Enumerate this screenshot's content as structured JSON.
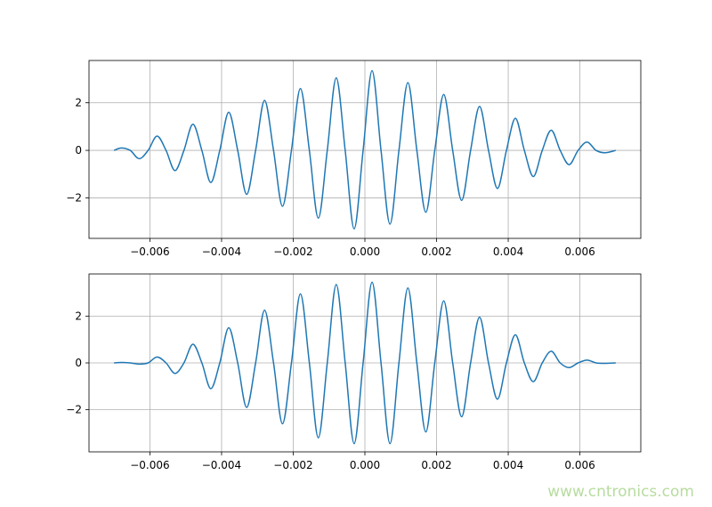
{
  "chart_data": [
    {
      "type": "line",
      "x": [
        -0.007,
        -0.0068,
        -0.00655,
        -0.0063,
        -0.00605,
        -0.0058,
        -0.00555,
        -0.0053,
        -0.00505,
        -0.0048,
        -0.00455,
        -0.0043,
        -0.00405,
        -0.0038,
        -0.00355,
        -0.0033,
        -0.00305,
        -0.0028,
        -0.00255,
        -0.0023,
        -0.00205,
        -0.0018,
        -0.00155,
        -0.0013,
        -0.00105,
        -0.0008,
        -0.00055,
        -0.0003,
        -5e-05,
        0.0002,
        0.00045,
        0.0007,
        0.00095,
        0.0012,
        0.00145,
        0.0017,
        0.00195,
        0.0022,
        0.00245,
        0.0027,
        0.00295,
        0.0032,
        0.00345,
        0.0037,
        0.00395,
        0.0042,
        0.00445,
        0.0047,
        0.00495,
        0.0052,
        0.00545,
        0.0057,
        0.00595,
        0.0062,
        0.00645,
        0.0067,
        0.007
      ],
      "series": [
        {
          "color": "#1f77b4",
          "values": [
            0,
            0.1,
            0,
            -0.35,
            0,
            0.6,
            0,
            -0.85,
            0,
            1.1,
            0,
            -1.35,
            0,
            1.6,
            0,
            -1.85,
            0,
            2.1,
            0,
            -2.35,
            0,
            2.6,
            0,
            -2.85,
            0,
            3.05,
            0,
            -3.3,
            0,
            3.35,
            0,
            -3.1,
            0,
            2.85,
            0,
            -2.6,
            0,
            2.35,
            0,
            -2.1,
            0,
            1.85,
            0,
            -1.6,
            0,
            1.35,
            0,
            -1.1,
            0,
            0.85,
            0,
            -0.6,
            0,
            0.35,
            0,
            -0.1,
            0
          ]
        }
      ],
      "xlim": [
        -0.0077,
        0.0077
      ],
      "ylim": [
        -3.7,
        3.78
      ],
      "xticks": [
        {
          "value": -0.006,
          "label": "−0.006"
        },
        {
          "value": -0.004,
          "label": "−0.004"
        },
        {
          "value": -0.002,
          "label": "−0.002"
        },
        {
          "value": 0,
          "label": "0.000"
        },
        {
          "value": 0.002,
          "label": "0.002"
        },
        {
          "value": 0.004,
          "label": "0.004"
        },
        {
          "value": 0.006,
          "label": "0.006"
        }
      ],
      "yticks": [
        {
          "value": -2,
          "label": "−2"
        },
        0,
        2
      ],
      "grid": true
    },
    {
      "type": "line",
      "x": [
        -0.007,
        -0.0068,
        -0.00655,
        -0.0063,
        -0.00605,
        -0.0058,
        -0.00555,
        -0.0053,
        -0.00505,
        -0.0048,
        -0.00455,
        -0.0043,
        -0.00405,
        -0.0038,
        -0.00355,
        -0.0033,
        -0.00305,
        -0.0028,
        -0.00255,
        -0.0023,
        -0.00205,
        -0.0018,
        -0.00155,
        -0.0013,
        -0.00105,
        -0.0008,
        -0.00055,
        -0.0003,
        -5e-05,
        0.0002,
        0.00045,
        0.0007,
        0.00095,
        0.0012,
        0.00145,
        0.0017,
        0.00195,
        0.0022,
        0.00245,
        0.0027,
        0.00295,
        0.0032,
        0.00345,
        0.0037,
        0.00395,
        0.0042,
        0.00445,
        0.0047,
        0.00495,
        0.0052,
        0.00545,
        0.0057,
        0.00595,
        0.0062,
        0.00645,
        0.0067,
        0.007
      ],
      "series": [
        {
          "color": "#1f77b4",
          "values": [
            0,
            0.02,
            0,
            -0.05,
            0,
            0.25,
            0,
            -0.45,
            0,
            0.8,
            0,
            -1.1,
            0,
            1.5,
            0,
            -1.9,
            0,
            2.25,
            0,
            -2.6,
            0,
            2.95,
            0,
            -3.2,
            0,
            3.35,
            0,
            -3.45,
            0,
            3.45,
            0,
            -3.45,
            0,
            3.2,
            0,
            -2.95,
            0,
            2.65,
            0,
            -2.3,
            0,
            1.95,
            0,
            -1.55,
            0,
            1.2,
            0,
            -0.8,
            0,
            0.5,
            0,
            -0.2,
            0,
            0.12,
            0,
            -0.02,
            0
          ]
        }
      ],
      "xlim": [
        -0.0077,
        0.0077
      ],
      "ylim": [
        -3.8,
        3.8
      ],
      "xticks": [
        {
          "value": -0.006,
          "label": "−0.006"
        },
        {
          "value": -0.004,
          "label": "−0.004"
        },
        {
          "value": -0.002,
          "label": "−0.002"
        },
        {
          "value": 0,
          "label": "0.000"
        },
        {
          "value": 0.002,
          "label": "0.002"
        },
        {
          "value": 0.004,
          "label": "0.004"
        },
        {
          "value": 0.006,
          "label": "0.006"
        }
      ],
      "yticks": [
        {
          "value": -2,
          "label": "−2"
        },
        0,
        2
      ],
      "grid": true
    }
  ],
  "watermark": "www.cntronics.com"
}
